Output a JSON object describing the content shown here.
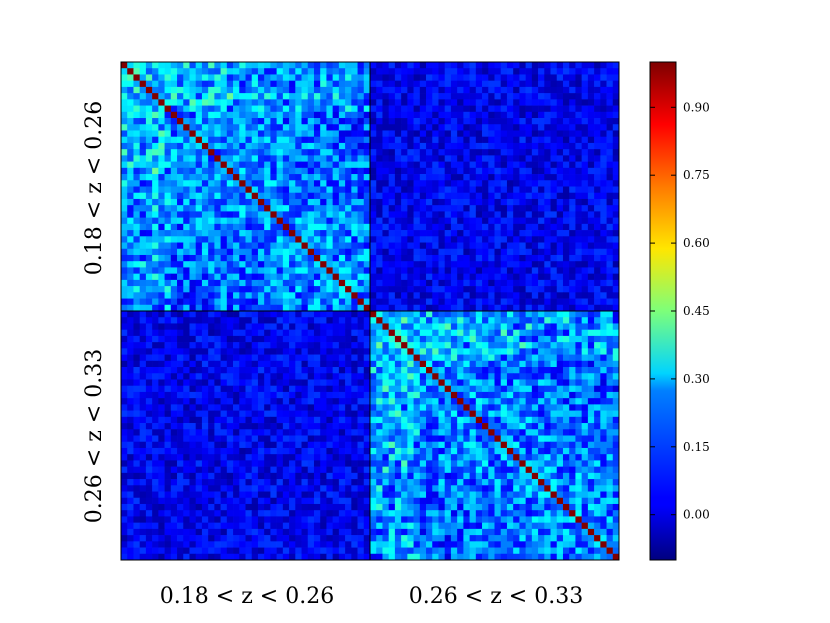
{
  "chart_data": {
    "type": "heatmap",
    "title": "",
    "grid_size": 80,
    "blocks": [
      {
        "name": "0.18 < z < 0.26",
        "size": 40
      },
      {
        "name": "0.26 < z < 0.33",
        "size": 40
      }
    ],
    "x_labels": [
      "0.18 < z < 0.26",
      "0.26 < z < 0.33"
    ],
    "y_labels": [
      "0.18 < z < 0.26",
      "0.26 < z < 0.33"
    ],
    "matrix_description": "correlation matrix; diagonal = 1.0; within-bin off-diagonal ~0.05-0.55; cross-bin ~ -0.05-0.10",
    "value_range": [
      -0.1,
      1.0
    ],
    "diagonal_value": 1.0,
    "within_bin_range": [
      0.0,
      0.55
    ],
    "cross_bin_range": [
      -0.06,
      0.1
    ],
    "colormap": "jet",
    "colorbar": {
      "ticks": [
        0.0,
        0.15,
        0.3,
        0.45,
        0.6,
        0.75,
        0.9
      ],
      "tick_labels": [
        "0.00",
        "0.15",
        "0.30",
        "0.45",
        "0.60",
        "0.75",
        "0.90"
      ],
      "min": -0.1,
      "max": 1.0
    }
  }
}
